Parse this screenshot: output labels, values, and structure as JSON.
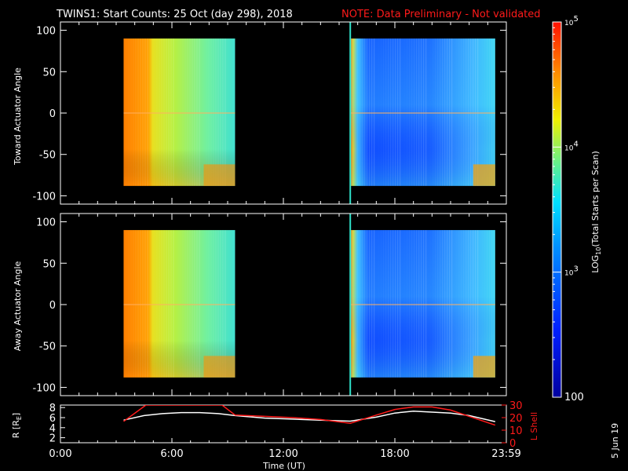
{
  "header": {
    "title": "TWINS1: Start Counts: 25 Oct (day 298), 2018",
    "note": "NOTE: Data Preliminary - Not validated"
  },
  "side_stamp": "5 Jun 19",
  "colors": {
    "background": "#000000",
    "axis": "#ffffff",
    "note": "#ff1a1a",
    "marker": "#2fe0c8"
  },
  "chart_data": [
    {
      "type": "heatmap",
      "name": "toward",
      "ylabel": "Toward Actuator Angle",
      "xlim": [
        0,
        24
      ],
      "ylim": [
        -110,
        110
      ],
      "yticks": [
        100,
        50,
        0,
        -50,
        -100
      ],
      "ytick_labels": [
        "100",
        "50",
        "0",
        "-50",
        "-100"
      ],
      "data_blocks": [
        {
          "start_hour": 3.4,
          "end_hour": 9.4,
          "angle_range": [
            -88,
            90
          ],
          "pattern": "fade-to-green"
        },
        {
          "start_hour": 15.6,
          "end_hour": 23.4,
          "angle_range": [
            -88,
            90
          ],
          "pattern": "blue"
        }
      ],
      "gap_marker_hour": 15.6
    },
    {
      "type": "heatmap",
      "name": "away",
      "ylabel": "Away Actuator Angle",
      "xlim": [
        0,
        24
      ],
      "ylim": [
        -110,
        110
      ],
      "yticks": [
        100,
        50,
        0,
        -50,
        -100
      ],
      "ytick_labels": [
        "100",
        "50",
        "0",
        "-50",
        "-100"
      ],
      "data_blocks": [
        {
          "start_hour": 3.4,
          "end_hour": 9.4,
          "angle_range": [
            -88,
            90
          ],
          "pattern": "fade-to-green"
        },
        {
          "start_hour": 15.6,
          "end_hour": 23.4,
          "angle_range": [
            -88,
            90
          ],
          "pattern": "blue"
        }
      ],
      "gap_marker_hour": 15.6
    },
    {
      "type": "line",
      "name": "ephemeris",
      "ylabel": "R [R",
      "ylabel_sub": "E",
      "ylabel_close": "]",
      "ylabel_right": "L Shell",
      "xlim": [
        0,
        24
      ],
      "ylim": [
        1,
        8.5
      ],
      "y2lim": [
        0,
        30
      ],
      "yticks": [
        8,
        6,
        4,
        2
      ],
      "ytick_labels": [
        "8",
        "6",
        "4",
        "2"
      ],
      "y2ticks": [
        30,
        20,
        10,
        0
      ],
      "y2tick_labels": [
        "30",
        "20",
        "10",
        "0"
      ],
      "xticks": [
        0,
        6,
        12,
        18,
        24
      ],
      "xtick_labels": [
        "0:00",
        "6:00",
        "12:00",
        "18:00",
        "23:59"
      ],
      "xlabel": "Time (UT)",
      "series": [
        {
          "name": "R",
          "axis": "left",
          "color": "#ffffff",
          "x": [
            3.4,
            4.5,
            5.5,
            6.5,
            7.5,
            8.5,
            9.4,
            11,
            12.5,
            14,
            15.6,
            17,
            18,
            19,
            20,
            21,
            22,
            23.4
          ],
          "y": [
            5.5,
            6.4,
            6.8,
            7.0,
            7.0,
            6.8,
            6.4,
            5.9,
            5.7,
            5.5,
            5.3,
            6.1,
            6.9,
            7.3,
            7.1,
            6.9,
            6.4,
            5.2
          ]
        },
        {
          "name": "L Shell",
          "axis": "right",
          "color": "#ff1a1a",
          "x": [
            3.4,
            4.6,
            4.7,
            8.6,
            8.7,
            9.4,
            11,
            12.5,
            14,
            15.6,
            17,
            18,
            19,
            20,
            21,
            22,
            23.4
          ],
          "y": [
            17,
            30,
            30,
            30,
            30,
            22,
            21,
            20,
            18.5,
            15.5,
            22,
            26.5,
            28.5,
            28.5,
            26,
            21,
            14
          ]
        }
      ]
    }
  ],
  "colorbar": {
    "label_prefix": "LOG",
    "label_sub": "10",
    "label_suffix": "(Total Starts per Scan)",
    "ticks": [
      {
        "base": "10",
        "exp": "5",
        "value": 5
      },
      {
        "base": "10",
        "exp": "4",
        "value": 4
      },
      {
        "base": "10",
        "exp": "3",
        "value": 3
      },
      {
        "base": "100",
        "exp": "",
        "value": 2
      }
    ],
    "range": [
      2,
      5
    ]
  }
}
